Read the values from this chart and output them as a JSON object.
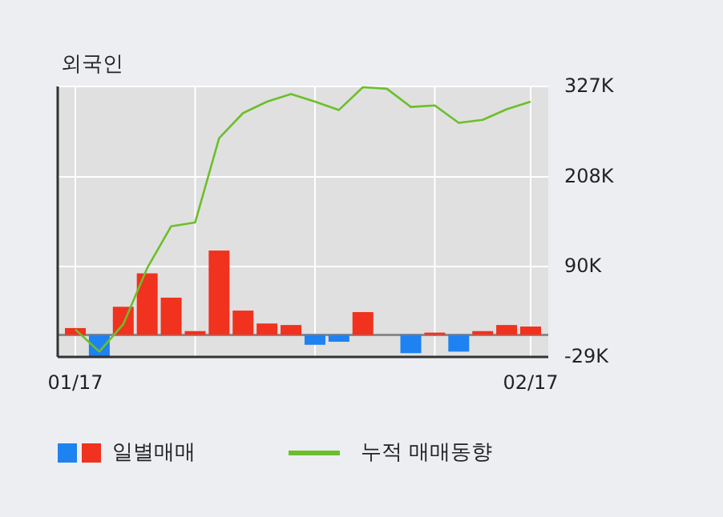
{
  "chart_data": {
    "type": "bar",
    "title": "외국인",
    "categories": [
      "01/17",
      null,
      null,
      null,
      null,
      null,
      null,
      null,
      null,
      null,
      null,
      null,
      null,
      null,
      null,
      null,
      null,
      null,
      null,
      "02/17"
    ],
    "series": [
      {
        "name": "일별매매",
        "colors": [
          "#f0321e",
          "#1e82f0",
          "#f0321e",
          "#f0321e",
          "#f0321e",
          "#f0321e",
          "#f0321e",
          "#f0321e",
          "#f0321e",
          "#f0321e",
          "#1e82f0",
          "#1e82f0",
          "#f0321e",
          "#f0321e",
          "#1e82f0",
          "#f0321e",
          "#1e82f0",
          "#f0321e",
          "#f0321e",
          "#f0321e"
        ],
        "values": [
          9,
          -28,
          37,
          81,
          49,
          5,
          111,
          32,
          15,
          13,
          -13,
          -9,
          30,
          0,
          -24,
          3,
          -22,
          5,
          13,
          11
        ]
      },
      {
        "name": "누적 매매동향",
        "type": "line",
        "color": "#6cbf2a",
        "values": [
          7,
          -22,
          14,
          88,
          143,
          148,
          259,
          292,
          307,
          317,
          307,
          296,
          326,
          324,
          300,
          302,
          279,
          283,
          297,
          307
        ]
      }
    ],
    "ylim": [
      -29,
      327
    ],
    "yticks": [
      {
        "value": -29,
        "label": "-29K"
      },
      {
        "value": 90,
        "label": "90K"
      },
      {
        "value": 208,
        "label": "208K"
      },
      {
        "value": 327,
        "label": "327K"
      }
    ],
    "grid": true,
    "legend": "bottom"
  }
}
